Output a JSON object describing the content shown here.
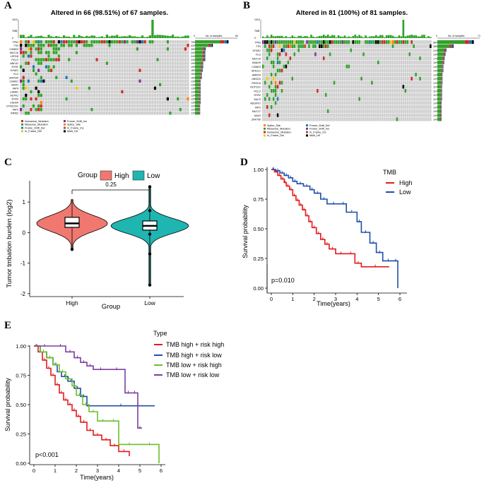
{
  "figure_labels": [
    "A",
    "B",
    "C",
    "D",
    "E"
  ],
  "chart_data": [
    {
      "type": "heatmap",
      "panel": "A",
      "title": "Altered in 66 (98.51%) of 67 samples.",
      "top_axis": {
        "label": "TMB",
        "ticks": [
          "1010",
          "0"
        ]
      },
      "right_axis": {
        "ticks": [
          "0",
          "54"
        ],
        "label": "No. of samples"
      },
      "genes": [
        "TP53",
        "TTN",
        "CSMD3",
        "MUC16",
        "LRP1B",
        "PCLO",
        "ABCA1",
        "RYR2",
        "SYNE1",
        "FLG",
        "ZNF536",
        "CSMD1",
        "XIRP2",
        "FAT4",
        "LAMA1",
        "ASTN1",
        "RYR3",
        "USH2A",
        "DYNC2H1",
        "FAT3",
        "RIMS2"
      ],
      "percentages": [
        "79%",
        "42%",
        "25%",
        "24%",
        "24%",
        "24%",
        "19%",
        "19%",
        "18%",
        "16%",
        "16%",
        "13%",
        "13%",
        "13%",
        "13%",
        "13%",
        "13%",
        "13%",
        "12%",
        "12%",
        "12%"
      ],
      "samples": 67,
      "legend": [
        "Nonsense_Mutation",
        "Missense_Mutation",
        "Frame_Shift_Del",
        "In_Frame_Del",
        "Frame_Shift_Ins",
        "Splice_Site",
        "In_Frame_Ins",
        "Multi_Hit"
      ]
    },
    {
      "type": "heatmap",
      "panel": "B",
      "title": "Altered in 81 (100%) of 81 samples.",
      "top_axis": {
        "label": "TMB",
        "ticks": [
          "1010",
          "0"
        ]
      },
      "right_axis": {
        "ticks": [
          "0",
          "71"
        ],
        "label": "No. of samples"
      },
      "genes": [
        "TP53",
        "TTN",
        "SYNE1",
        "FLG",
        "MUC16",
        "DNAH5",
        "CSMD3",
        "NFE2L2",
        "AMPD3",
        "OBSCN",
        "PIK3CA",
        "NOTCH1",
        "PCLO",
        "RYR2",
        "SACS",
        "ADGRV1",
        "FAT3",
        "MUC17",
        "NAV3",
        "ZNF750"
      ],
      "percentages": [
        "86%",
        "38%",
        "21%",
        "19%",
        "17%",
        "16%",
        "14%",
        "14%",
        "12%",
        "12%",
        "12%",
        "11%",
        "11%",
        "11%",
        "11%",
        "10%",
        "10%",
        "10%",
        "10%",
        "10%"
      ],
      "samples": 81,
      "legend": [
        "Splice_Site",
        "Missense_Mutation",
        "Nonsense_Mutation",
        "In_Frame_Del",
        "Frame_Shift_Del",
        "Frame_Shift_Ins",
        "In_Frame_Ins",
        "Multi_Hit"
      ]
    },
    {
      "type": "violin",
      "panel": "C",
      "legend_title": "Group",
      "legend": [
        "High",
        "Low"
      ],
      "categories": [
        "High",
        "Low"
      ],
      "series": [
        {
          "name": "High",
          "median": 0.3,
          "q1": 0.17,
          "q3": 0.5,
          "min": -0.55,
          "max": 1.08
        },
        {
          "name": "Low",
          "median": 0.22,
          "q1": 0.08,
          "q3": 0.38,
          "min": -1.72,
          "max": 1.5
        }
      ],
      "xlabel": "Group",
      "ylabel": "Tumor tmbation burden (log2)",
      "ylim": [
        -2,
        1.6
      ],
      "yticks": [
        "-2",
        "-1",
        "0",
        "1"
      ],
      "annotation": "0.25"
    },
    {
      "type": "line",
      "panel": "D",
      "legend_title": "TMB",
      "legend": [
        "High",
        "Low"
      ],
      "xlabel": "Time(years)",
      "ylabel": "Survival probability",
      "xlim": [
        0,
        6
      ],
      "ylim": [
        0,
        1
      ],
      "xticks": [
        "0",
        "1",
        "2",
        "3",
        "4",
        "5",
        "6"
      ],
      "yticks": [
        "0.00",
        "0.25",
        "0.50",
        "0.75",
        "1.00"
      ],
      "annotation": "p=0.010",
      "series": [
        {
          "name": "High",
          "color": "#e41a1c",
          "x": [
            0,
            0.15,
            0.3,
            0.45,
            0.6,
            0.7,
            0.85,
            1.0,
            1.15,
            1.3,
            1.45,
            1.6,
            1.75,
            1.9,
            2.1,
            2.3,
            2.5,
            2.7,
            3.0,
            3.5,
            3.9,
            4.2,
            5.5
          ],
          "y": [
            1.0,
            0.98,
            0.95,
            0.92,
            0.89,
            0.86,
            0.83,
            0.78,
            0.74,
            0.7,
            0.66,
            0.61,
            0.56,
            0.51,
            0.46,
            0.41,
            0.37,
            0.33,
            0.29,
            0.29,
            0.21,
            0.18,
            0.18
          ]
        },
        {
          "name": "Low",
          "color": "#1f4ea8",
          "x": [
            0,
            0.2,
            0.4,
            0.6,
            0.8,
            1.0,
            1.2,
            1.5,
            1.8,
            2.0,
            2.3,
            2.6,
            3.2,
            3.5,
            4.0,
            4.2,
            4.6,
            4.9,
            5.2,
            5.7,
            5.9
          ],
          "y": [
            1.0,
            0.99,
            0.97,
            0.95,
            0.93,
            0.9,
            0.88,
            0.86,
            0.83,
            0.8,
            0.75,
            0.71,
            0.71,
            0.64,
            0.56,
            0.47,
            0.38,
            0.3,
            0.23,
            0.23,
            0.0
          ]
        }
      ]
    },
    {
      "type": "line",
      "panel": "E",
      "legend_title": "Type",
      "legend": [
        "TMB high + risk high",
        "TMB high + risk low",
        "TMB low + risk high",
        "TMB low + risk low"
      ],
      "xlabel": "Time(years)",
      "ylabel": "Survival probability",
      "xlim": [
        0,
        6
      ],
      "ylim": [
        0,
        1
      ],
      "xticks": [
        "0",
        "1",
        "2",
        "3",
        "4",
        "5",
        "6"
      ],
      "yticks": [
        "0.00",
        "0.25",
        "0.50",
        "0.75",
        "1.00"
      ],
      "annotation": "p<0.001",
      "series": [
        {
          "name": "TMB high + risk high",
          "color": "#e41a1c",
          "x": [
            0,
            0.2,
            0.4,
            0.6,
            0.8,
            1.0,
            1.2,
            1.4,
            1.6,
            1.8,
            2.0,
            2.2,
            2.5,
            2.8,
            3.2,
            3.6,
            4.0,
            4.5
          ],
          "y": [
            1.0,
            0.95,
            0.88,
            0.81,
            0.75,
            0.67,
            0.6,
            0.54,
            0.5,
            0.45,
            0.4,
            0.35,
            0.28,
            0.24,
            0.2,
            0.15,
            0.1,
            0.06
          ]
        },
        {
          "name": "TMB high + risk low",
          "color": "#1f4ea8",
          "x": [
            0,
            0.3,
            0.6,
            0.9,
            1.1,
            1.3,
            1.6,
            1.9,
            2.2,
            2.5,
            5.7
          ],
          "y": [
            1.0,
            0.95,
            0.9,
            0.84,
            0.78,
            0.74,
            0.7,
            0.64,
            0.57,
            0.49,
            0.49
          ]
        },
        {
          "name": "TMB low + risk high",
          "color": "#6abf2a",
          "x": [
            0,
            0.3,
            0.6,
            0.9,
            1.2,
            1.5,
            1.8,
            2.0,
            2.3,
            2.6,
            3.0,
            3.5,
            4.0,
            5.0,
            5.9
          ],
          "y": [
            1.0,
            0.95,
            0.9,
            0.84,
            0.78,
            0.72,
            0.66,
            0.58,
            0.5,
            0.44,
            0.36,
            0.36,
            0.16,
            0.16,
            0.0
          ]
        },
        {
          "name": "TMB low + risk low",
          "color": "#7b3fa0",
          "x": [
            0,
            1.0,
            1.5,
            1.9,
            2.2,
            2.5,
            2.8,
            3.5,
            4.3,
            4.6,
            4.9,
            5.1
          ],
          "y": [
            1.0,
            1.0,
            0.95,
            0.9,
            0.86,
            0.83,
            0.8,
            0.8,
            0.6,
            0.6,
            0.3,
            0.3
          ]
        }
      ]
    }
  ]
}
